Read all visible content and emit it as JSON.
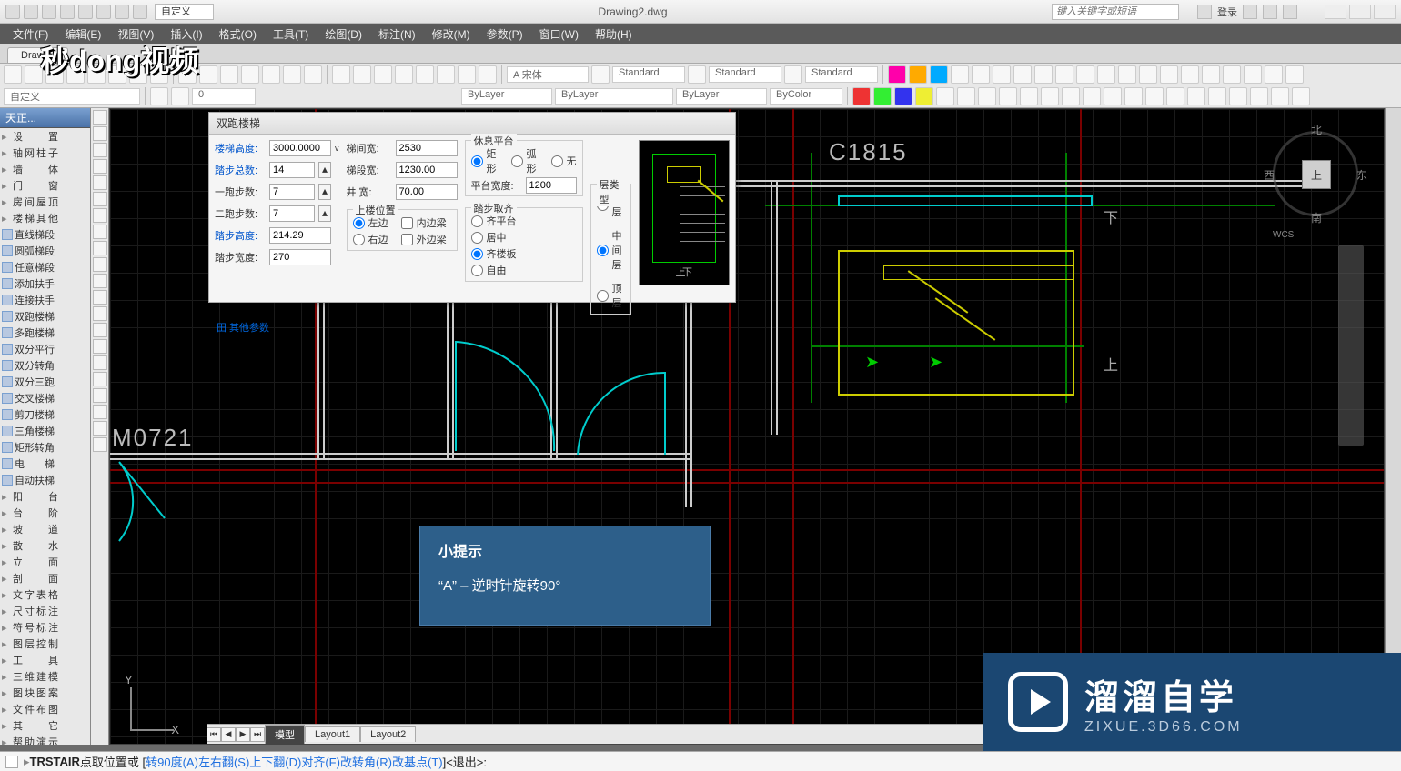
{
  "title_qat_label": "自定义",
  "document_name": "Drawing2.dwg",
  "search_placeholder": "键入关键字或短语",
  "login_label": "登录",
  "menu": {
    "file": "文件(F)",
    "edit": "编辑(E)",
    "view": "视图(V)",
    "insert": "插入(I)",
    "format": "格式(O)",
    "tools": "工具(T)",
    "draw": "绘图(D)",
    "dimension": "标注(N)",
    "modify": "修改(M)",
    "param": "参数(P)",
    "window": "窗口(W)",
    "help": "帮助(H)"
  },
  "filetab": "Draw…",
  "ribbon": {
    "font_name": "A 宋体",
    "style1": "Standard",
    "style2": "Standard",
    "style3": "Standard",
    "bylayer1": "ByLayer",
    "bylayer2": "ByLayer",
    "bylayer3": "ByLayer",
    "bycolor": "ByColor",
    "custom": "自定义",
    "zero_field": "0"
  },
  "side_header": "天正...",
  "side_items": [
    {
      "t": "设　　置"
    },
    {
      "t": "轴网柱子"
    },
    {
      "t": "墙　　体"
    },
    {
      "t": "门　　窗"
    },
    {
      "t": "房间屋顶"
    },
    {
      "t": "楼梯其他"
    },
    {
      "t": "直线梯段",
      "i": 1
    },
    {
      "t": "圆弧梯段",
      "i": 1
    },
    {
      "t": "任意梯段",
      "i": 1
    },
    {
      "t": "添加扶手",
      "i": 1
    },
    {
      "t": "连接扶手",
      "i": 1
    },
    {
      "t": "双跑楼梯",
      "i": 1
    },
    {
      "t": "多跑楼梯",
      "i": 1
    },
    {
      "t": "双分平行",
      "i": 1
    },
    {
      "t": "双分转角",
      "i": 1
    },
    {
      "t": "双分三跑",
      "i": 1
    },
    {
      "t": "交叉楼梯",
      "i": 1
    },
    {
      "t": "剪刀楼梯",
      "i": 1
    },
    {
      "t": "三角楼梯",
      "i": 1
    },
    {
      "t": "矩形转角",
      "i": 1
    },
    {
      "t": "电　　梯",
      "i": 1
    },
    {
      "t": "自动扶梯",
      "i": 1
    },
    {
      "t": "阳　　台"
    },
    {
      "t": "台　　阶"
    },
    {
      "t": "坡　　道"
    },
    {
      "t": "散　　水"
    },
    {
      "t": "立　　面"
    },
    {
      "t": "剖　　面"
    },
    {
      "t": "文字表格"
    },
    {
      "t": "尺寸标注"
    },
    {
      "t": "符号标注"
    },
    {
      "t": "图层控制"
    },
    {
      "t": "工　　具"
    },
    {
      "t": "三维建模"
    },
    {
      "t": "图块图案"
    },
    {
      "t": "文件布图"
    },
    {
      "t": "其　　它"
    },
    {
      "t": "帮助演示"
    }
  ],
  "dialog": {
    "title": "双跑楼梯",
    "labels": {
      "stair_height": "楼梯高度:",
      "step_total": "踏步总数:",
      "run1_steps": "一跑步数:",
      "run2_steps": "二跑步数:",
      "riser_h": "踏步高度:",
      "tread_w": "踏步宽度:",
      "landing_w": "梯间宽:",
      "flight_w": "梯段宽:",
      "well_w": "井 宽:",
      "up_pos": "上楼位置",
      "left": "左边",
      "right": "右边",
      "inner_beam": "内边梁",
      "outer_beam": "外边梁",
      "rest_platform": "休息平台",
      "rect": "矩形",
      "arc": "弧形",
      "none": "无",
      "platform_w": "平台宽度:",
      "step_align": "踏步取齐",
      "align_platform": "齐平台",
      "align_mid": "居中",
      "align_board": "齐楼板",
      "align_free": "自由",
      "floor_type": "层类型",
      "first": "首层",
      "mid": "中间层",
      "top": "顶层",
      "other": "田 其他参数"
    },
    "values": {
      "stair_height": "3000.0000",
      "step_total": "14",
      "run1_steps": "7",
      "run2_steps": "7",
      "riser_h": "214.29",
      "tread_w": "270",
      "landing_w": "2530",
      "flight_w": "1230.00",
      "well_w": "70.00",
      "platform_w": "1200"
    }
  },
  "canvas": {
    "label_m": "M0721",
    "label_c": "C1815",
    "up_char": "上",
    "down_char": "下",
    "tip_title": "小提示",
    "tip_body": "“A” – 逆时针旋转90°"
  },
  "viewcube": {
    "n": "北",
    "s": "南",
    "e": "东",
    "w": "西",
    "up": "上",
    "wcs": "WCS"
  },
  "model_tabs": {
    "model": "模型",
    "layout1": "Layout1",
    "layout2": "Layout2"
  },
  "cmd": {
    "cmd_name": "TRSTAIR",
    "prompt": " 点取位置或 [",
    "a": "转90度(A)",
    "s": " 左右翻(S)",
    "d": " 上下翻(D)",
    "f": " 对齐(F)",
    "r": " 改转角(R)",
    "t": " 改基点(T)",
    "tail": "]<退出>:"
  },
  "wm": {
    "brand1": "秒dong视频",
    "brand2_big": "溜溜自学",
    "brand2_small": "ZIXUE.3D66.COM"
  },
  "colors": {
    "red_axis": "#800000",
    "green_axis": "#008000",
    "wall": "#cccccc",
    "cyan": "#00cccc",
    "yellow": "#cccc00",
    "green_bright": "#00cc00",
    "tipbox": "#2d5f8a",
    "wm2": "#1b4772"
  }
}
